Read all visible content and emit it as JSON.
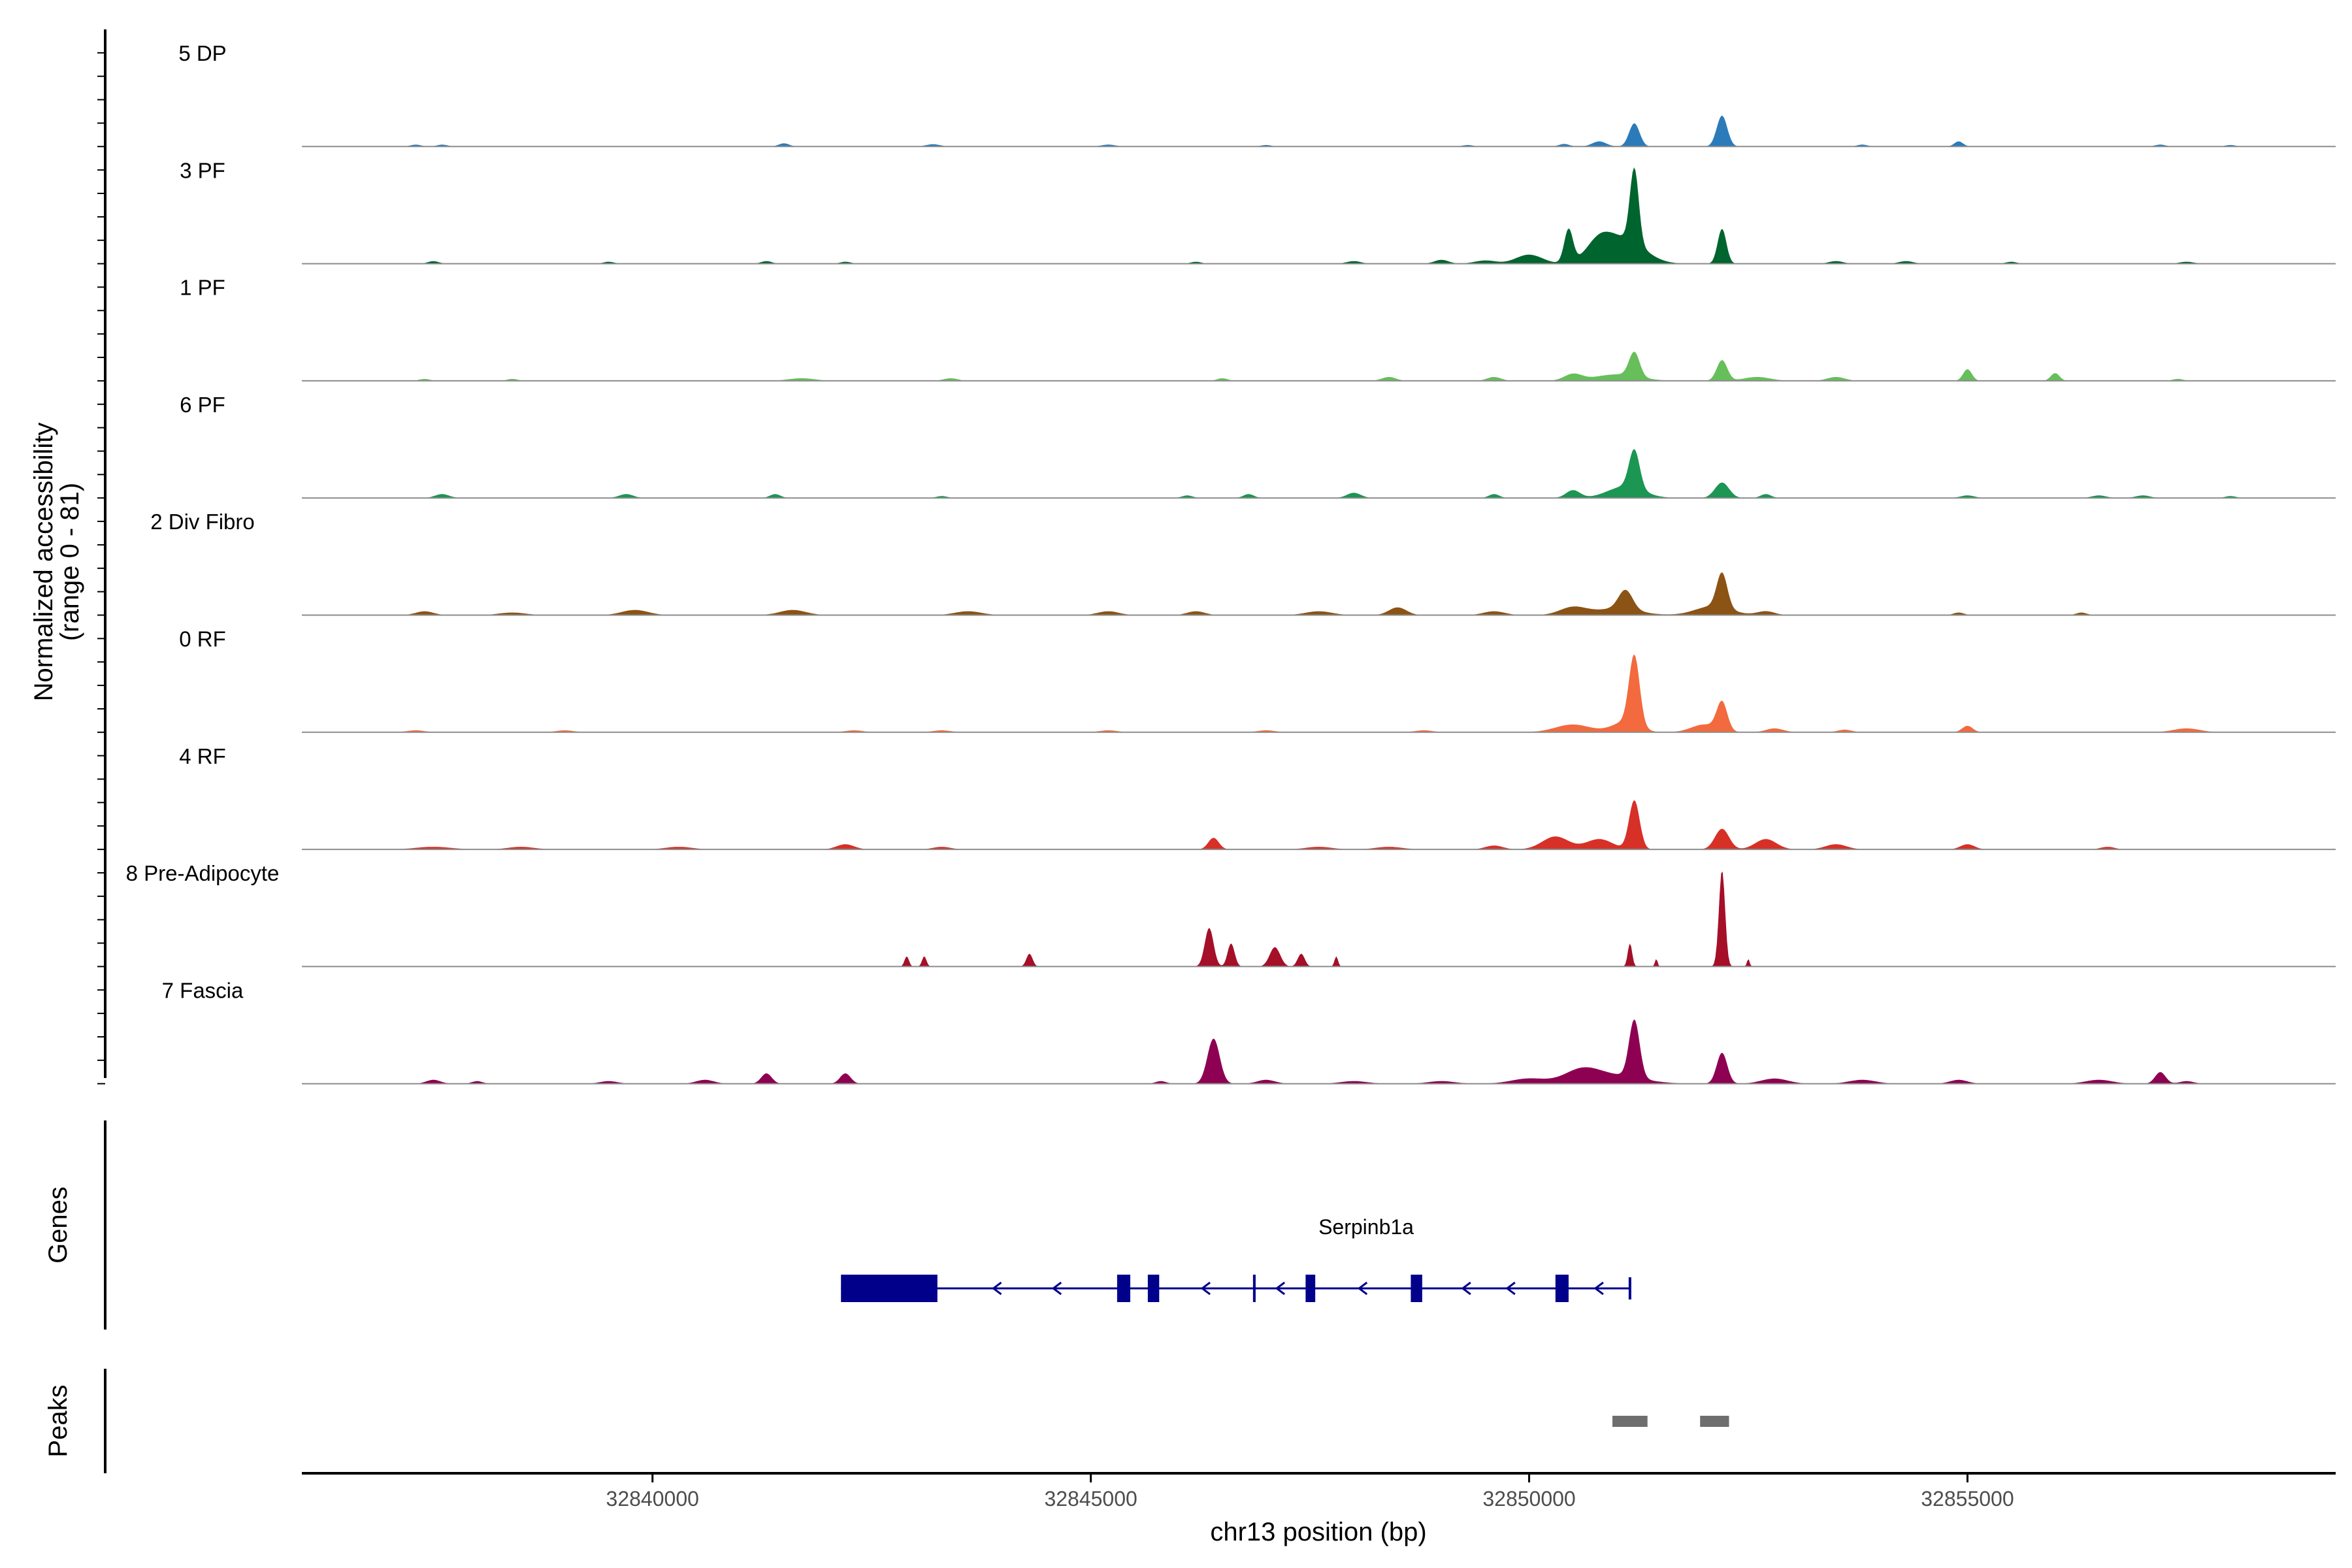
{
  "chart_data": {
    "type": "coverage",
    "chromosome": "chr13",
    "region": [
      32836000,
      32859200
    ],
    "xlabel": "chr13 position (bp)",
    "ylabel": "Normalized accessibility",
    "ylabel_range": "(range 0 - 81)",
    "ylim": [
      0,
      81
    ],
    "xticks": [
      32840000,
      32845000,
      32850000,
      32855000
    ],
    "xtick_labels": [
      "32840000",
      "32845000",
      "32850000",
      "32855000"
    ],
    "panel_labels": {
      "genes": "Genes",
      "peaks": "Peaks"
    },
    "tracks": [
      {
        "name": "5 DP",
        "color": "#2b7bba",
        "peaks": [
          [
            32837300,
            60,
            1.5
          ],
          [
            32837600,
            60,
            1.5
          ],
          [
            32841500,
            60,
            2.5
          ],
          [
            32843200,
            80,
            1.8
          ],
          [
            32845200,
            80,
            1.5
          ],
          [
            32847000,
            60,
            1.2
          ],
          [
            32849300,
            60,
            1.2
          ],
          [
            32850400,
            60,
            2
          ],
          [
            32850800,
            80,
            4
          ],
          [
            32851200,
            60,
            18
          ],
          [
            32852200,
            60,
            24
          ],
          [
            32853800,
            60,
            1.5
          ],
          [
            32854900,
            50,
            4
          ],
          [
            32857200,
            60,
            1.5
          ],
          [
            32858000,
            60,
            1.2
          ]
        ]
      },
      {
        "name": "3 PF",
        "color": "#00642e",
        "peaks": [
          [
            32837500,
            60,
            2
          ],
          [
            32839500,
            60,
            1.5
          ],
          [
            32841300,
            60,
            2
          ],
          [
            32842200,
            60,
            1.5
          ],
          [
            32846200,
            60,
            1.5
          ],
          [
            32848000,
            80,
            2
          ],
          [
            32849000,
            80,
            3
          ],
          [
            32849500,
            120,
            2.5
          ],
          [
            32850000,
            150,
            7
          ],
          [
            32850450,
            50,
            26
          ],
          [
            32850800,
            150,
            16
          ],
          [
            32851200,
            50,
            58
          ],
          [
            32851100,
            220,
            18
          ],
          [
            32852200,
            50,
            27
          ],
          [
            32853500,
            80,
            2
          ],
          [
            32854300,
            80,
            2
          ],
          [
            32855500,
            60,
            1.5
          ],
          [
            32857500,
            80,
            1.5
          ]
        ]
      },
      {
        "name": "1 PF",
        "color": "#66bf5a",
        "peaks": [
          [
            32837400,
            60,
            1.5
          ],
          [
            32838400,
            60,
            1.5
          ],
          [
            32841700,
            150,
            2
          ],
          [
            32843400,
            80,
            2
          ],
          [
            32846500,
            60,
            2
          ],
          [
            32848400,
            80,
            3
          ],
          [
            32849600,
            80,
            3
          ],
          [
            32850500,
            100,
            5
          ],
          [
            32851200,
            60,
            19
          ],
          [
            32851000,
            250,
            5
          ],
          [
            32852200,
            60,
            16
          ],
          [
            32852600,
            150,
            3
          ],
          [
            32853500,
            100,
            3
          ],
          [
            32855000,
            50,
            9
          ],
          [
            32856000,
            50,
            6
          ],
          [
            32857400,
            60,
            1.5
          ]
        ]
      },
      {
        "name": "6 PF",
        "color": "#1b9653",
        "peaks": [
          [
            32837600,
            80,
            3
          ],
          [
            32839700,
            80,
            3
          ],
          [
            32841400,
            60,
            3
          ],
          [
            32843300,
            60,
            1.5
          ],
          [
            32846100,
            60,
            2
          ],
          [
            32846800,
            60,
            3
          ],
          [
            32848000,
            80,
            4
          ],
          [
            32849600,
            60,
            3
          ],
          [
            32850500,
            80,
            6
          ],
          [
            32851200,
            60,
            30
          ],
          [
            32851100,
            200,
            9
          ],
          [
            32852200,
            80,
            12
          ],
          [
            32852700,
            60,
            3
          ],
          [
            32855000,
            80,
            2
          ],
          [
            32856500,
            80,
            2
          ],
          [
            32857000,
            80,
            2
          ],
          [
            32858000,
            60,
            1.5
          ]
        ]
      },
      {
        "name": "2 Div Fibro",
        "color": "#8b5314",
        "peaks": [
          [
            32837400,
            100,
            3
          ],
          [
            32838400,
            150,
            2
          ],
          [
            32839800,
            150,
            4
          ],
          [
            32841600,
            150,
            4
          ],
          [
            32843600,
            150,
            3
          ],
          [
            32845200,
            120,
            3
          ],
          [
            32846200,
            100,
            3
          ],
          [
            32847600,
            150,
            3
          ],
          [
            32848500,
            100,
            6
          ],
          [
            32849600,
            120,
            3
          ],
          [
            32850500,
            150,
            6
          ],
          [
            32851100,
            80,
            15
          ],
          [
            32851000,
            250,
            5
          ],
          [
            32852200,
            60,
            27
          ],
          [
            32852100,
            200,
            7
          ],
          [
            32852700,
            100,
            3
          ],
          [
            32854900,
            60,
            2
          ],
          [
            32856300,
            60,
            2
          ]
        ]
      },
      {
        "name": "0 RF",
        "color": "#f26a3d",
        "peaks": [
          [
            32837300,
            100,
            1.5
          ],
          [
            32839000,
            100,
            1.5
          ],
          [
            32842300,
            100,
            1.5
          ],
          [
            32843300,
            100,
            1.5
          ],
          [
            32845200,
            100,
            1.5
          ],
          [
            32847000,
            100,
            1.5
          ],
          [
            32848800,
            100,
            1.5
          ],
          [
            32850500,
            200,
            6
          ],
          [
            32851200,
            60,
            54
          ],
          [
            32851100,
            150,
            8
          ],
          [
            32852200,
            60,
            22
          ],
          [
            32852000,
            150,
            6
          ],
          [
            32852800,
            100,
            3
          ],
          [
            32853600,
            80,
            2
          ],
          [
            32855000,
            60,
            5
          ],
          [
            32857500,
            150,
            3
          ]
        ]
      },
      {
        "name": "4 RF",
        "color": "#d73027",
        "peaks": [
          [
            32837500,
            200,
            2
          ],
          [
            32838500,
            150,
            2
          ],
          [
            32840300,
            150,
            2
          ],
          [
            32842200,
            100,
            4
          ],
          [
            32843300,
            100,
            2
          ],
          [
            32846400,
            60,
            9
          ],
          [
            32847600,
            150,
            2
          ],
          [
            32848400,
            150,
            2
          ],
          [
            32849600,
            100,
            3
          ],
          [
            32850300,
            150,
            10
          ],
          [
            32850800,
            150,
            8
          ],
          [
            32851200,
            60,
            38
          ],
          [
            32852200,
            80,
            16
          ],
          [
            32852700,
            120,
            8
          ],
          [
            32853500,
            120,
            4
          ],
          [
            32855000,
            80,
            4
          ],
          [
            32856600,
            80,
            2
          ]
        ]
      },
      {
        "name": "8 Pre-Adipocyte",
        "color": "#a50f28",
        "peaks": [
          [
            32842900,
            25,
            8
          ],
          [
            32843100,
            25,
            8
          ],
          [
            32844300,
            35,
            10
          ],
          [
            32846350,
            50,
            30
          ],
          [
            32846600,
            40,
            18
          ],
          [
            32847100,
            60,
            15
          ],
          [
            32847400,
            40,
            10
          ],
          [
            32847800,
            20,
            8
          ],
          [
            32851150,
            25,
            18
          ],
          [
            32851450,
            15,
            6
          ],
          [
            32852200,
            35,
            75
          ],
          [
            32852500,
            15,
            6
          ]
        ]
      },
      {
        "name": "7 Fascia",
        "color": "#8e0152",
        "peaks": [
          [
            32837500,
            80,
            3
          ],
          [
            32838000,
            60,
            2
          ],
          [
            32839500,
            100,
            2
          ],
          [
            32840600,
            100,
            3
          ],
          [
            32841300,
            60,
            8
          ],
          [
            32842200,
            60,
            8
          ],
          [
            32846400,
            70,
            35
          ],
          [
            32845800,
            60,
            2
          ],
          [
            32847000,
            100,
            3
          ],
          [
            32848000,
            150,
            2
          ],
          [
            32849000,
            150,
            2
          ],
          [
            32850000,
            200,
            4
          ],
          [
            32850600,
            200,
            10
          ],
          [
            32851200,
            60,
            45
          ],
          [
            32851000,
            300,
            6
          ],
          [
            32852200,
            60,
            24
          ],
          [
            32852800,
            150,
            4
          ],
          [
            32853800,
            150,
            3
          ],
          [
            32854900,
            100,
            3
          ],
          [
            32856500,
            150,
            3
          ],
          [
            32857200,
            60,
            9
          ],
          [
            32857500,
            80,
            2
          ]
        ]
      }
    ],
    "genes": [
      {
        "name": "Serpinb1a",
        "strand": "-",
        "start": 32842150,
        "end": 32851150,
        "utr": [
          [
            32842150,
            32843250
          ]
        ],
        "exons": [
          [
            32845300,
            32845450
          ],
          [
            32845650,
            32845780
          ],
          [
            32846850,
            32846880
          ],
          [
            32847450,
            32847560
          ],
          [
            32848650,
            32848780
          ],
          [
            32850300,
            32850450
          ]
        ]
      }
    ],
    "peak_regions": [
      [
        32850950,
        32851350
      ],
      [
        32851950,
        32852280
      ]
    ]
  },
  "colors": {
    "baseline": "#8c8c8c",
    "axis": "#000000",
    "gene": "#00008b",
    "peak_region": "#6e6e6e"
  }
}
